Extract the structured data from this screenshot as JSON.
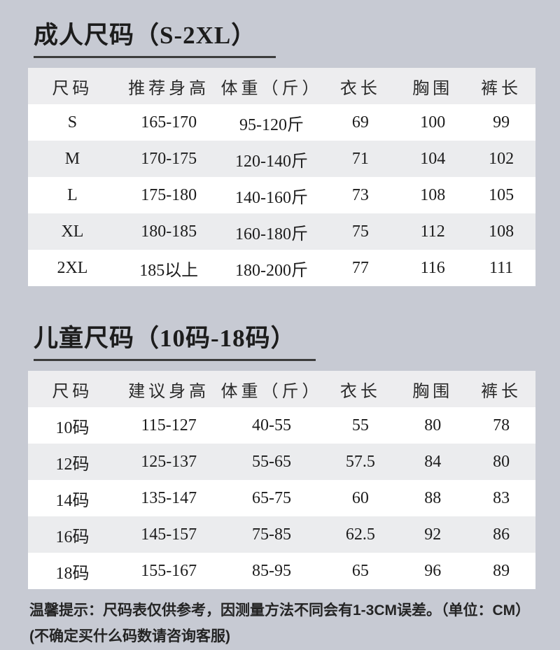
{
  "colors": {
    "page_bg": "#c7cad3",
    "table_header_bg": "#ededef",
    "row_bg": "#ffffff",
    "row_alt_bg": "#ebecee",
    "underline": "#3c3c3c",
    "text": "#1c1c1c"
  },
  "sections": {
    "adult": {
      "title": "成人尺码（S-2XL）"
    },
    "child": {
      "title": "儿童尺码（10码-18码）"
    }
  },
  "tables": {
    "adult": {
      "headers": [
        "尺码",
        "推荐身高",
        "体重（斤）",
        "衣长",
        "胸围",
        "裤长"
      ],
      "rows": [
        [
          "S",
          "165-170",
          "95-120斤",
          "69",
          "100",
          "99"
        ],
        [
          "M",
          "170-175",
          "120-140斤",
          "71",
          "104",
          "102"
        ],
        [
          "L",
          "175-180",
          "140-160斤",
          "73",
          "108",
          "105"
        ],
        [
          "XL",
          "180-185",
          "160-180斤",
          "75",
          "112",
          "108"
        ],
        [
          "2XL",
          "185以上",
          "180-200斤",
          "77",
          "116",
          "111"
        ]
      ]
    },
    "child": {
      "headers": [
        "尺码",
        "建议身高",
        "体重（斤）",
        "衣长",
        "胸围",
        "裤长"
      ],
      "rows": [
        [
          "10码",
          "115-127",
          "40-55",
          "55",
          "80",
          "78"
        ],
        [
          "12码",
          "125-137",
          "55-65",
          "57.5",
          "84",
          "80"
        ],
        [
          "14码",
          "135-147",
          "65-75",
          "60",
          "88",
          "83"
        ],
        [
          "16码",
          "145-157",
          "75-85",
          "62.5",
          "92",
          "86"
        ],
        [
          "18码",
          "155-167",
          "85-95",
          "65",
          "96",
          "89"
        ]
      ]
    }
  },
  "footer": {
    "line1": "温馨提示：尺码表仅供参考，因测量方法不同会有1-3CM误差。（单位：CM）",
    "line2": "(不确定买什么码数请咨询客服)"
  }
}
